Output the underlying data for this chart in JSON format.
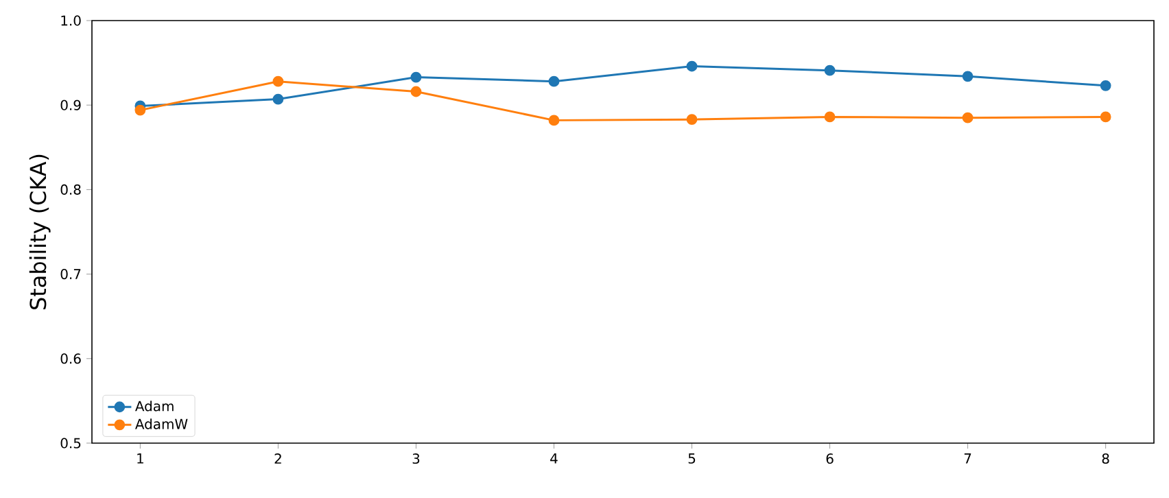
{
  "chart_data": {
    "type": "line",
    "ylabel": "Stability (CKA)",
    "x": [
      1,
      2,
      3,
      4,
      5,
      6,
      7,
      8
    ],
    "series": [
      {
        "name": "Adam",
        "color": "#1f77b4",
        "values": [
          0.899,
          0.907,
          0.933,
          0.928,
          0.946,
          0.941,
          0.934,
          0.923
        ]
      },
      {
        "name": "AdamW",
        "color": "#ff7f0e",
        "values": [
          0.894,
          0.928,
          0.916,
          0.882,
          0.883,
          0.886,
          0.885,
          0.886
        ]
      }
    ],
    "xlim": [
      0.65,
      8.35
    ],
    "ylim": [
      0.5,
      1.0
    ],
    "xticks": [
      1,
      2,
      3,
      4,
      5,
      6,
      7,
      8
    ],
    "yticks": [
      0.5,
      0.6,
      0.7,
      0.8,
      0.9,
      {
        "value": 1,
        "label": "1.0"
      }
    ],
    "legend": "bottom left",
    "marker": "circle",
    "line_style": "solid",
    "grid": false
  }
}
